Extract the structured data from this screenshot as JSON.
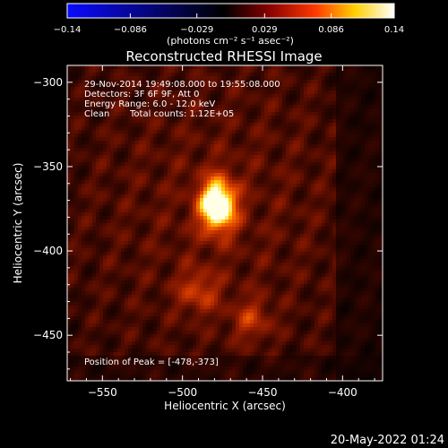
{
  "chart_data": {
    "type": "heatmap",
    "title": "Reconstructed RHESSI Image",
    "xlabel": "Heliocentric X (arcsec)",
    "ylabel": "Heliocentric Y (arcsec)",
    "xlim": [
      -572,
      -375
    ],
    "ylim": [
      -477,
      -290
    ],
    "x_ticks": [
      -550,
      -500,
      -450,
      -400
    ],
    "x_tick_labels": [
      "−550",
      "−500",
      "−450",
      "−400"
    ],
    "y_ticks": [
      -300,
      -350,
      -400,
      -450
    ],
    "y_tick_labels": [
      "−300",
      "−350",
      "−400",
      "−450"
    ],
    "colorbar": {
      "range": [
        -0.14,
        0.14
      ],
      "ticks": [
        -0.14,
        -0.086,
        -0.029,
        0.029,
        0.086,
        0.14
      ],
      "tick_labels": [
        "−0.14",
        "−0.086",
        "−0.029",
        "0.029",
        "0.086",
        "0.14"
      ],
      "unit_label": "(photons cm⁻² s⁻¹ asec⁻²)",
      "colors": [
        "#0000ff",
        "#000000",
        "#ff0000",
        "#ffff00",
        "#ffffff"
      ]
    },
    "annotations": {
      "time": "29-Nov-2014 19:49:08.000 to 19:55:08.000",
      "detectors": "Detectors: 3F 6F 9F, Att 0",
      "energy": "Energy Range: 6.0 - 12.0 keV",
      "method": "Clean",
      "counts": "Total counts: 1.12E+05",
      "peak": "Position of Peak = [-478,-373]"
    },
    "sources": [
      {
        "x": -478,
        "y": -373,
        "peak": 0.14
      },
      {
        "x": -490,
        "y": -424,
        "peak": 0.045
      },
      {
        "x": -457,
        "y": -441,
        "peak": 0.04
      }
    ]
  },
  "footer": {
    "timestamp": "20-May-2022 01:24"
  }
}
